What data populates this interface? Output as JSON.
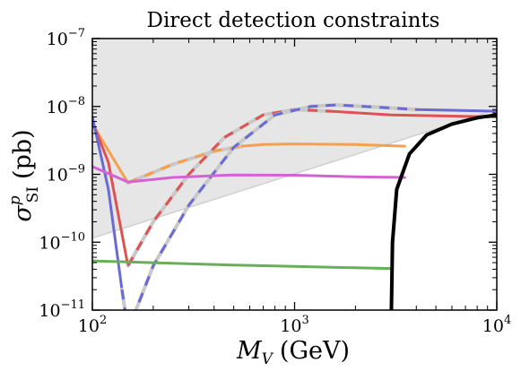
{
  "chart_data": {
    "type": "line",
    "title": "Direct detection constraints",
    "xlabel_main": "M",
    "xlabel_sub": "V",
    "xlabel_unit": "(GeV)",
    "ylabel_main": "σ",
    "ylabel_sub": "SI",
    "ylabel_sup": "p",
    "ylabel_unit": "(pb)",
    "x_scale": "log",
    "y_scale": "log",
    "xlim": [
      100,
      10000
    ],
    "ylim": [
      1e-11,
      1e-07
    ],
    "x_ticks": [
      {
        "value": 100,
        "base": "10",
        "exp": "2"
      },
      {
        "value": 1000,
        "base": "10",
        "exp": "3"
      },
      {
        "value": 10000,
        "base": "10",
        "exp": "4"
      }
    ],
    "y_ticks": [
      {
        "value": 1e-11,
        "base": "10",
        "exp": "−11"
      },
      {
        "value": 1e-10,
        "base": "10",
        "exp": "−10"
      },
      {
        "value": 1e-09,
        "base": "10",
        "exp": "−9"
      },
      {
        "value": 1e-08,
        "base": "10",
        "exp": "−8"
      },
      {
        "value": 1e-07,
        "base": "10",
        "exp": "−7"
      }
    ],
    "excluded_region": {
      "color": "#e6e6e6",
      "edge_color": "#d0d0d0",
      "boundary": [
        [
          100,
          1.15e-10
        ],
        [
          10000,
          9e-09
        ]
      ]
    },
    "series": [
      {
        "color": "#f5a04a",
        "style": "solid",
        "points": [
          [
            100,
            5.5e-09
          ],
          [
            150,
            7.5e-10
          ]
        ]
      },
      {
        "color": "#f5a04a",
        "style": "dashed",
        "points": [
          [
            150,
            7.5e-10
          ],
          [
            250,
            1.4e-09
          ],
          [
            400,
            2.2e-09
          ],
          [
            550,
            2.6e-09
          ]
        ]
      },
      {
        "color": "#f5a04a",
        "style": "solid",
        "points": [
          [
            550,
            2.6e-09
          ],
          [
            700,
            2.75e-09
          ],
          [
            1000,
            2.8e-09
          ],
          [
            2000,
            2.75e-09
          ],
          [
            3500,
            2.6e-09
          ]
        ]
      },
      {
        "color": "#e05252",
        "style": "solid",
        "points": [
          [
            100,
            6e-09
          ],
          [
            120,
            1.5e-09
          ],
          [
            150,
            4.5e-11
          ]
        ]
      },
      {
        "color": "#e05252",
        "style": "dashed",
        "points": [
          [
            150,
            4.5e-11
          ],
          [
            200,
            2e-10
          ],
          [
            300,
            1e-09
          ],
          [
            450,
            3.5e-09
          ],
          [
            700,
            7.5e-09
          ],
          [
            1000,
            9e-09
          ],
          [
            1500,
            8.5e-09
          ]
        ]
      },
      {
        "color": "#e05252",
        "style": "solid",
        "points": [
          [
            1500,
            8.5e-09
          ],
          [
            3000,
            7.5e-09
          ],
          [
            10000,
            7e-09
          ]
        ]
      },
      {
        "color": "#6a6ad6",
        "style": "solid",
        "points": [
          [
            100,
            7e-09
          ],
          [
            120,
            6e-10
          ],
          [
            140,
            2e-11
          ]
        ]
      },
      {
        "color": "#6a6ad6",
        "style": "dashed",
        "points": [
          [
            140,
            2e-11
          ],
          [
            150,
            5e-12
          ],
          [
            200,
            4.5e-11
          ],
          [
            300,
            3.5e-10
          ],
          [
            500,
            2.5e-09
          ],
          [
            800,
            7.5e-09
          ],
          [
            1200,
            1e-08
          ],
          [
            1600,
            1.05e-08
          ],
          [
            2500,
            9.8e-09
          ],
          [
            4000,
            9e-09
          ]
        ]
      },
      {
        "color": "#6a6ad6",
        "style": "solid",
        "points": [
          [
            4000,
            9e-09
          ],
          [
            10000,
            8.5e-09
          ]
        ]
      },
      {
        "color": "#d462d4",
        "style": "solid",
        "points": [
          [
            100,
            1.3e-09
          ],
          [
            150,
            7.7e-10
          ],
          [
            250,
            9e-10
          ],
          [
            500,
            9.8e-10
          ],
          [
            1000,
            9.7e-10
          ],
          [
            2000,
            9.2e-10
          ],
          [
            3500,
            9e-10
          ]
        ]
      },
      {
        "color": "#6aae5a",
        "style": "solid",
        "points": [
          [
            100,
            5.3e-11
          ],
          [
            200,
            5e-11
          ],
          [
            500,
            4.6e-11
          ],
          [
            1000,
            4.4e-11
          ],
          [
            2000,
            4.2e-11
          ],
          [
            3000,
            4.1e-11
          ]
        ]
      },
      {
        "color": "#000000",
        "style": "solid",
        "points": [
          [
            3000,
            5e-12
          ],
          [
            3050,
            1e-10
          ],
          [
            3200,
            6e-10
          ],
          [
            3700,
            2e-09
          ],
          [
            4500,
            3.8e-09
          ],
          [
            6000,
            5.5e-09
          ],
          [
            8000,
            6.8e-09
          ],
          [
            10000,
            7.5e-09
          ]
        ]
      }
    ]
  }
}
